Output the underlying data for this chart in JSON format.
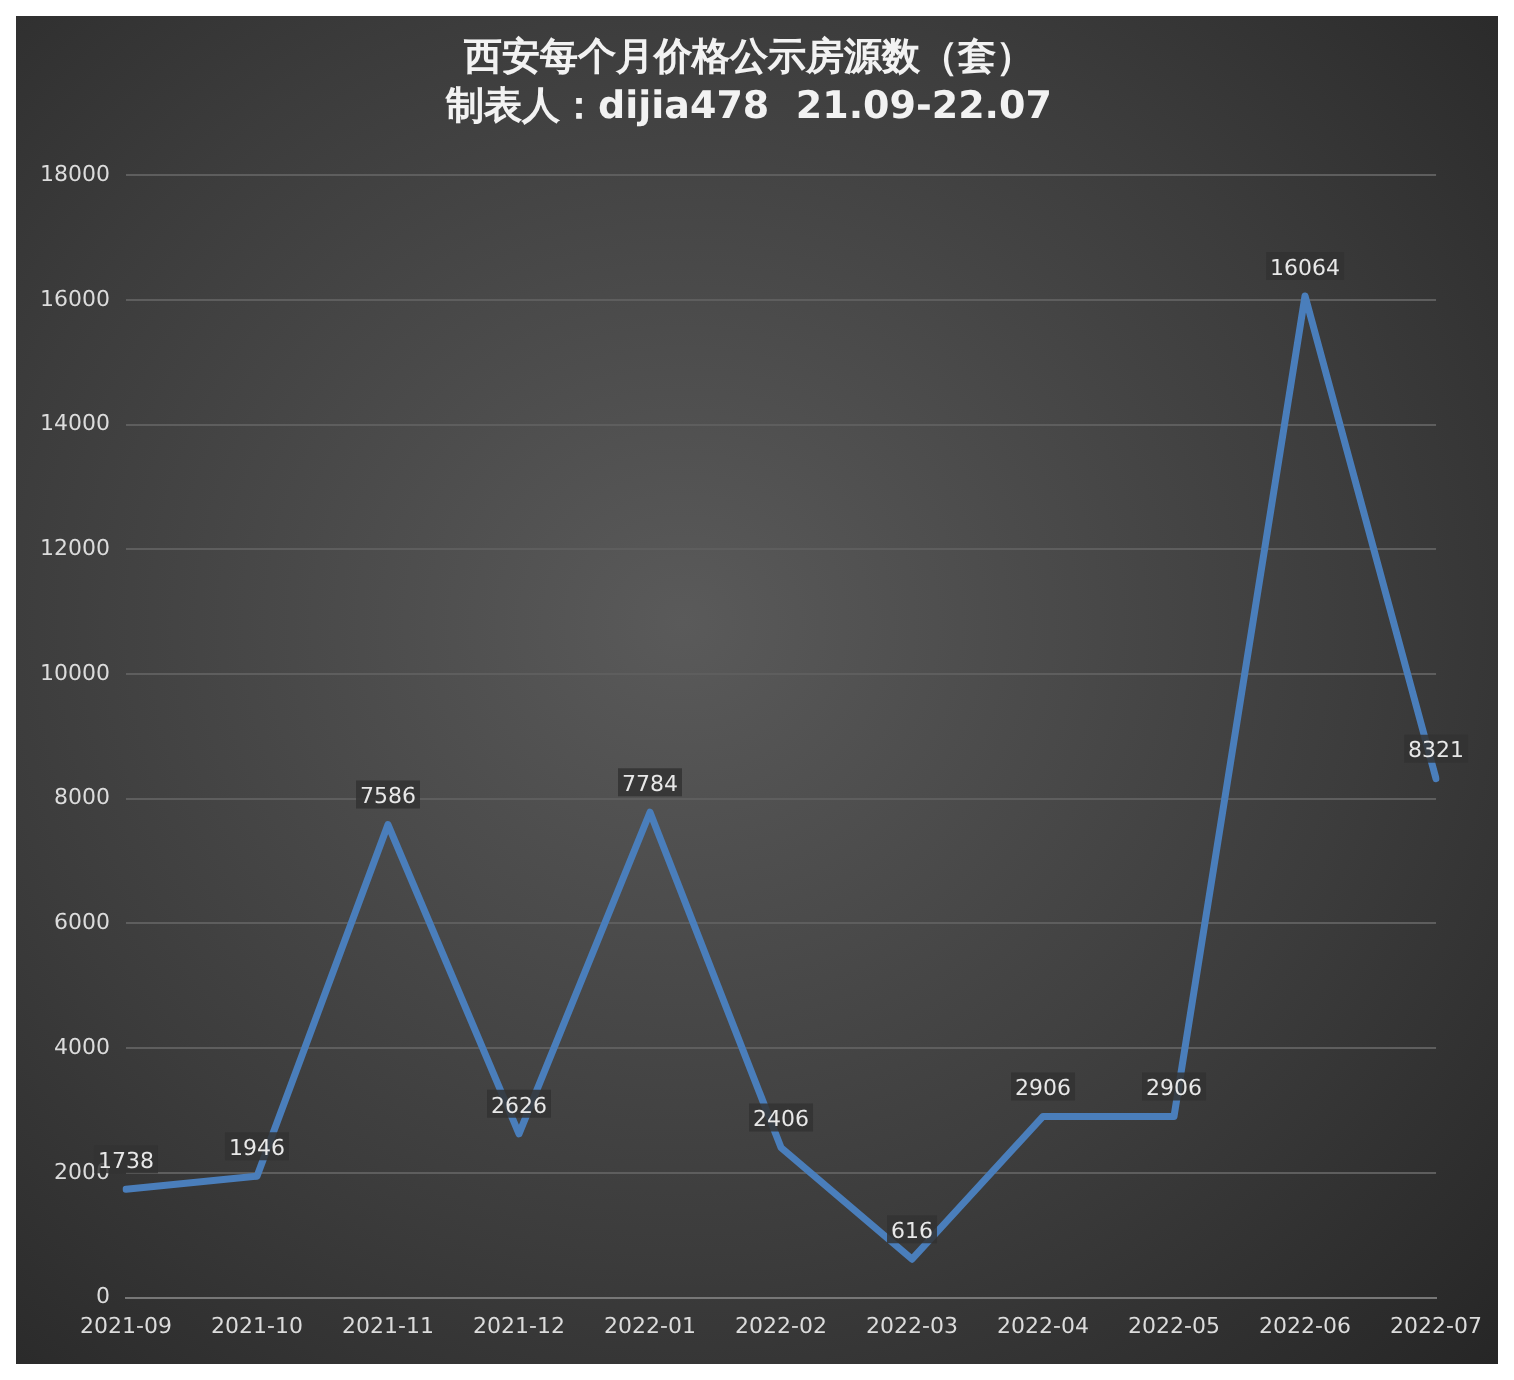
{
  "chart_data": {
    "type": "line",
    "title": "西安每个月价格公示房源数（套）",
    "subtitle": "制表人：dijia478  21.09-22.07",
    "categories": [
      "2021-09",
      "2021-10",
      "2021-11",
      "2021-12",
      "2022-01",
      "2022-02",
      "2022-03",
      "2022-04",
      "2022-05",
      "2022-06",
      "2022-07"
    ],
    "series": [
      {
        "color": "#4a7ebb",
        "values": [
          1738,
          1946,
          7586,
          2626,
          7784,
          2406,
          616,
          2906,
          2906,
          16064,
          8321
        ]
      }
    ],
    "ylim": [
      0,
      18000
    ],
    "yticks": [
      0,
      2000,
      4000,
      6000,
      8000,
      10000,
      12000,
      14000,
      16000,
      18000
    ],
    "grid": "y",
    "legend": false,
    "marker": "none",
    "line_style": "solid",
    "data_labels": true
  }
}
